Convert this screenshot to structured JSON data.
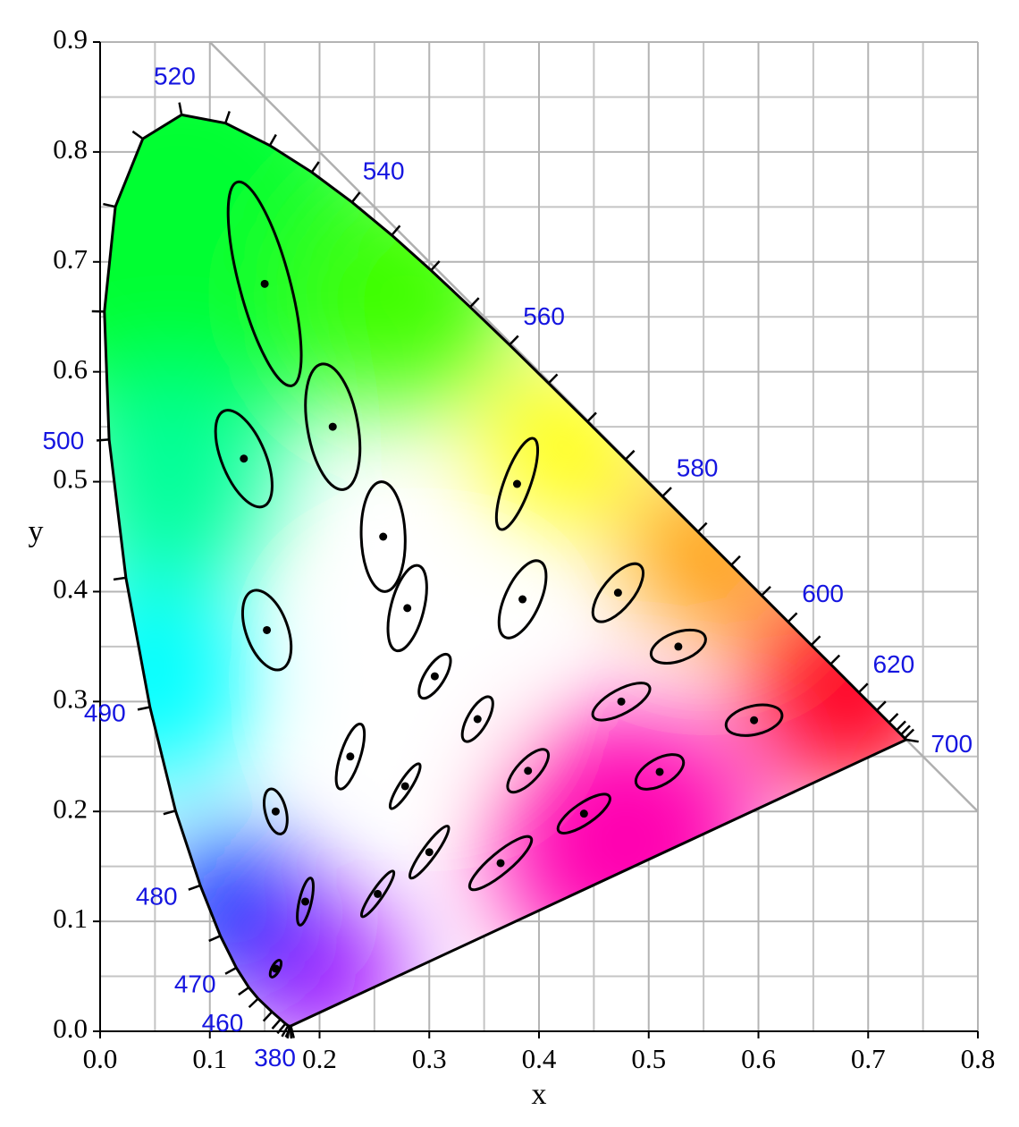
{
  "chart_data": {
    "type": "ellipse-scatter",
    "x_label": "x",
    "y_label": "y",
    "xlim": [
      0,
      0.8
    ],
    "ylim": [
      0,
      0.9
    ],
    "xticks": [
      {
        "value": 0,
        "label": "0.0"
      },
      0.1,
      0.2,
      0.3,
      0.4,
      0.5,
      0.6,
      0.7,
      0.8
    ],
    "yticks": [
      {
        "value": 0,
        "label": "0.0"
      },
      0.1,
      0.2,
      0.3,
      0.4,
      0.5,
      0.6,
      0.7,
      0.8,
      0.9
    ],
    "xminor": [
      0.05,
      0.15,
      0.25,
      0.35,
      0.45,
      0.55,
      0.65,
      0.75
    ],
    "yminor": [
      0.05,
      0.15,
      0.25,
      0.35,
      0.45,
      0.55,
      0.65,
      0.75,
      0.85
    ],
    "grid": true,
    "color": "#000000",
    "x": [
      0.16,
      0.187,
      0.253,
      0.15,
      0.131,
      0.212,
      0.258,
      0.152,
      0.28,
      0.38,
      0.16,
      0.228,
      0.305,
      0.385,
      0.472,
      0.527,
      0.475,
      0.51,
      0.596,
      0.344,
      0.39,
      0.441,
      0.278,
      0.3,
      0.365
    ],
    "values": [
      0.057,
      0.118,
      0.125,
      0.68,
      0.521,
      0.55,
      0.45,
      0.365,
      0.385,
      0.498,
      0.2,
      0.25,
      0.323,
      0.393,
      0.399,
      0.35,
      0.3,
      0.236,
      0.283,
      0.284,
      0.237,
      0.198,
      0.223,
      0.163,
      0.153
    ],
    "semi_major": [
      0.0085,
      0.022,
      0.025,
      0.096,
      0.047,
      0.058,
      0.05,
      0.038,
      0.04,
      0.044,
      0.021,
      0.031,
      0.023,
      0.038,
      0.032,
      0.026,
      0.029,
      0.024,
      0.026,
      0.023,
      0.025,
      0.028,
      0.024,
      0.029,
      0.036
    ],
    "semi_minor": [
      0.0035,
      0.0055,
      0.005,
      0.023,
      0.02,
      0.023,
      0.02,
      0.019,
      0.015,
      0.012,
      0.0095,
      0.009,
      0.009,
      0.016,
      0.014,
      0.013,
      0.011,
      0.012,
      0.013,
      0.009,
      0.01,
      0.0095,
      0.0055,
      0.006,
      0.0095
    ],
    "angle": [
      62.5,
      77,
      55.5,
      105,
      112.5,
      100,
      92,
      110,
      75.5,
      70,
      104,
      72,
      58,
      65.5,
      51,
      20,
      28.5,
      29.5,
      13,
      60,
      47,
      34.5,
      57.5,
      54,
      40
    ],
    "locus": [
      {
        "nm": 380,
        "x": 0.1741,
        "y": 0.005
      },
      {
        "x": 0.1738,
        "y": 0.0049
      },
      {
        "x": 0.1733,
        "y": 0.0048
      },
      {
        "x": 0.1726,
        "y": 0.0048
      },
      {
        "x": 0.1714,
        "y": 0.0051
      },
      {
        "x": 0.1689,
        "y": 0.0069
      },
      {
        "x": 0.1644,
        "y": 0.0109
      },
      {
        "x": 0.1566,
        "y": 0.0177
      },
      {
        "nm": 460,
        "x": 0.144,
        "y": 0.0297
      },
      {
        "x": 0.1355,
        "y": 0.0399
      },
      {
        "nm": 470,
        "x": 0.1241,
        "y": 0.0578
      },
      {
        "x": 0.1096,
        "y": 0.0868
      },
      {
        "nm": 480,
        "x": 0.0913,
        "y": 0.1327
      },
      {
        "x": 0.0687,
        "y": 0.2007
      },
      {
        "nm": 490,
        "x": 0.0454,
        "y": 0.295
      },
      {
        "x": 0.0235,
        "y": 0.4127
      },
      {
        "nm": 500,
        "x": 0.0082,
        "y": 0.5384
      },
      {
        "x": 0.0039,
        "y": 0.6548
      },
      {
        "x": 0.0139,
        "y": 0.7502
      },
      {
        "x": 0.0389,
        "y": 0.812
      },
      {
        "nm": 520,
        "x": 0.0743,
        "y": 0.8338
      },
      {
        "x": 0.1142,
        "y": 0.8262
      },
      {
        "x": 0.1547,
        "y": 0.8059
      },
      {
        "x": 0.1929,
        "y": 0.7816
      },
      {
        "nm": 540,
        "x": 0.2296,
        "y": 0.7543
      },
      {
        "x": 0.2658,
        "y": 0.7243
      },
      {
        "x": 0.3016,
        "y": 0.6923
      },
      {
        "x": 0.3373,
        "y": 0.6589
      },
      {
        "nm": 560,
        "x": 0.3731,
        "y": 0.6245
      },
      {
        "x": 0.4087,
        "y": 0.5896
      },
      {
        "x": 0.4441,
        "y": 0.5547
      },
      {
        "x": 0.4788,
        "y": 0.5202
      },
      {
        "nm": 580,
        "x": 0.5125,
        "y": 0.4866
      },
      {
        "x": 0.5448,
        "y": 0.4544
      },
      {
        "x": 0.5752,
        "y": 0.4242
      },
      {
        "x": 0.6029,
        "y": 0.3965
      },
      {
        "nm": 600,
        "x": 0.627,
        "y": 0.3725
      },
      {
        "x": 0.6482,
        "y": 0.3514
      },
      {
        "x": 0.6658,
        "y": 0.334
      },
      {
        "nm": 620,
        "x": 0.6915,
        "y": 0.3083
      },
      {
        "x": 0.7079,
        "y": 0.292
      },
      {
        "x": 0.719,
        "y": 0.2809
      },
      {
        "x": 0.726,
        "y": 0.274
      },
      {
        "x": 0.73,
        "y": 0.27
      },
      {
        "x": 0.7334,
        "y": 0.2666
      },
      {
        "nm": 700,
        "x": 0.7347,
        "y": 0.2653
      }
    ]
  }
}
